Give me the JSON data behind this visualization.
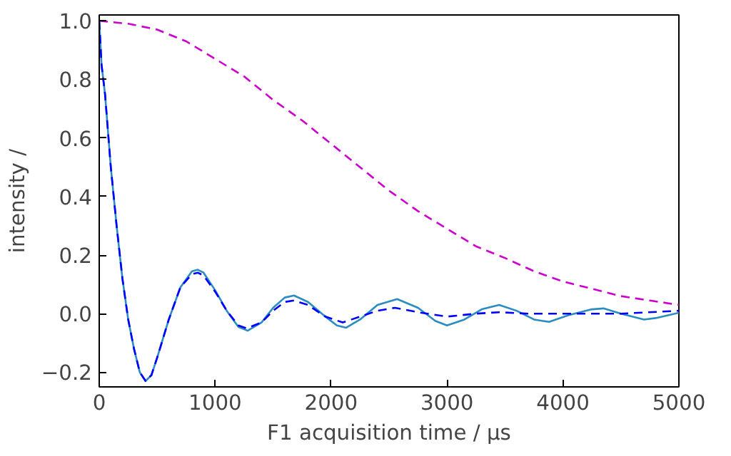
{
  "chart_data": {
    "type": "line",
    "xlabel": "F1 acquisition time / µs",
    "ylabel": "intensity /",
    "xlim": [
      0,
      5000
    ],
    "ylim": [
      -0.25,
      1.02
    ],
    "xticks": [
      0,
      1000,
      2000,
      3000,
      4000,
      5000
    ],
    "yticks": [
      {
        "value": -0.2,
        "label": "−0.2"
      },
      {
        "value": 0,
        "label": "0.0"
      },
      {
        "value": 0.2,
        "label": "0.2"
      },
      {
        "value": 0.4,
        "label": "0.4"
      },
      {
        "value": 0.6,
        "label": "0.6"
      },
      {
        "value": 0.8,
        "label": "0.8"
      },
      {
        "value": 1.0,
        "label": "1.0"
      }
    ],
    "grid": false,
    "series": [
      {
        "color": "#cc00cc",
        "line_style": "dashed",
        "x": [
          0,
          250,
          500,
          750,
          1000,
          1250,
          1500,
          1750,
          2000,
          2250,
          2500,
          2750,
          3000,
          3250,
          3500,
          3750,
          4000,
          4250,
          4500,
          4750,
          5000
        ],
        "values": [
          1.0,
          0.99,
          0.97,
          0.93,
          0.87,
          0.81,
          0.73,
          0.66,
          0.58,
          0.5,
          0.42,
          0.35,
          0.29,
          0.23,
          0.19,
          0.145,
          0.11,
          0.085,
          0.06,
          0.045,
          0.03
        ]
      },
      {
        "color": "#2a8cc0",
        "line_style": "solid",
        "x": [
          0,
          20,
          50,
          100,
          150,
          200,
          250,
          300,
          350,
          400,
          450,
          500,
          600,
          700,
          800,
          850,
          900,
          1000,
          1100,
          1200,
          1280,
          1400,
          1500,
          1600,
          1680,
          1800,
          1950,
          2050,
          2130,
          2250,
          2400,
          2570,
          2750,
          2900,
          3000,
          3150,
          3300,
          3450,
          3600,
          3750,
          3880,
          4050,
          4250,
          4350,
          4500,
          4700,
          4800,
          5000
        ],
        "values": [
          1.0,
          0.85,
          0.75,
          0.5,
          0.3,
          0.12,
          -0.02,
          -0.12,
          -0.2,
          -0.23,
          -0.21,
          -0.15,
          -0.02,
          0.09,
          0.145,
          0.15,
          0.14,
          0.08,
          0.01,
          -0.045,
          -0.058,
          -0.03,
          0.02,
          0.055,
          0.062,
          0.04,
          -0.01,
          -0.04,
          -0.048,
          -0.02,
          0.03,
          0.05,
          0.02,
          -0.025,
          -0.04,
          -0.02,
          0.015,
          0.03,
          0.01,
          -0.02,
          -0.028,
          -0.005,
          0.015,
          0.018,
          0.0,
          -0.02,
          -0.015,
          0.003
        ]
      },
      {
        "color": "#0000ff",
        "line_style": "dashed",
        "x": [
          0,
          20,
          50,
          100,
          150,
          200,
          250,
          300,
          350,
          400,
          450,
          500,
          600,
          700,
          800,
          850,
          900,
          1000,
          1100,
          1200,
          1270,
          1400,
          1500,
          1600,
          1680,
          1800,
          1950,
          2100,
          2250,
          2400,
          2550,
          2750,
          3000,
          3250,
          3450,
          3700,
          4000,
          4500,
          5000
        ],
        "values": [
          1.0,
          0.85,
          0.75,
          0.5,
          0.3,
          0.12,
          -0.02,
          -0.12,
          -0.2,
          -0.23,
          -0.21,
          -0.15,
          -0.02,
          0.09,
          0.135,
          0.14,
          0.13,
          0.075,
          0.01,
          -0.04,
          -0.05,
          -0.03,
          0.01,
          0.04,
          0.045,
          0.03,
          -0.01,
          -0.03,
          -0.01,
          0.01,
          0.02,
          0.005,
          -0.01,
          0.0,
          0.005,
          0.0,
          0.0,
          0.0,
          0.01
        ]
      }
    ]
  }
}
